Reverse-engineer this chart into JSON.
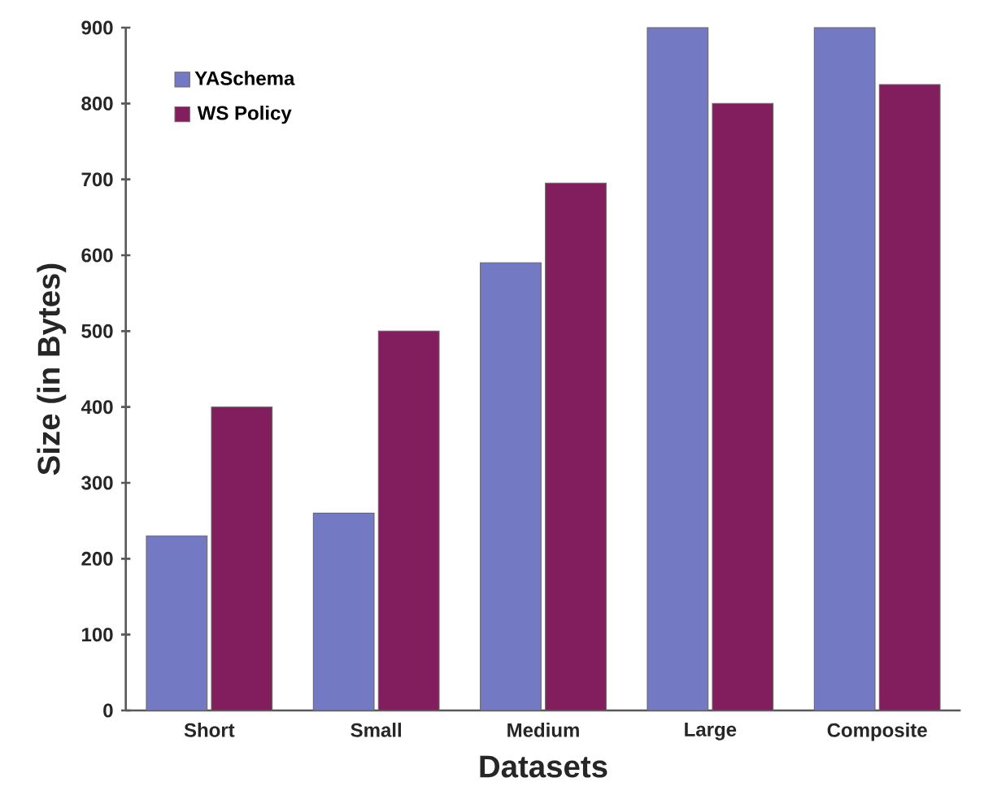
{
  "chart_data": {
    "type": "bar",
    "xlabel": "Datasets",
    "ylabel": "Size (in Bytes)",
    "categories": [
      "Short",
      "Small",
      "Medium",
      "Large",
      "Composite"
    ],
    "series": [
      {
        "name": "YASchema",
        "color": "#7479c4",
        "values": [
          230,
          260,
          590,
          900,
          900
        ]
      },
      {
        "name": "WS Policy",
        "color": "#821d5e",
        "values": [
          400,
          500,
          695,
          800,
          825
        ]
      }
    ],
    "ylim": [
      0,
      900
    ],
    "yticks": [
      0,
      100,
      200,
      300,
      400,
      500,
      600,
      700,
      800,
      900
    ],
    "grid": false,
    "legend": "top left"
  }
}
